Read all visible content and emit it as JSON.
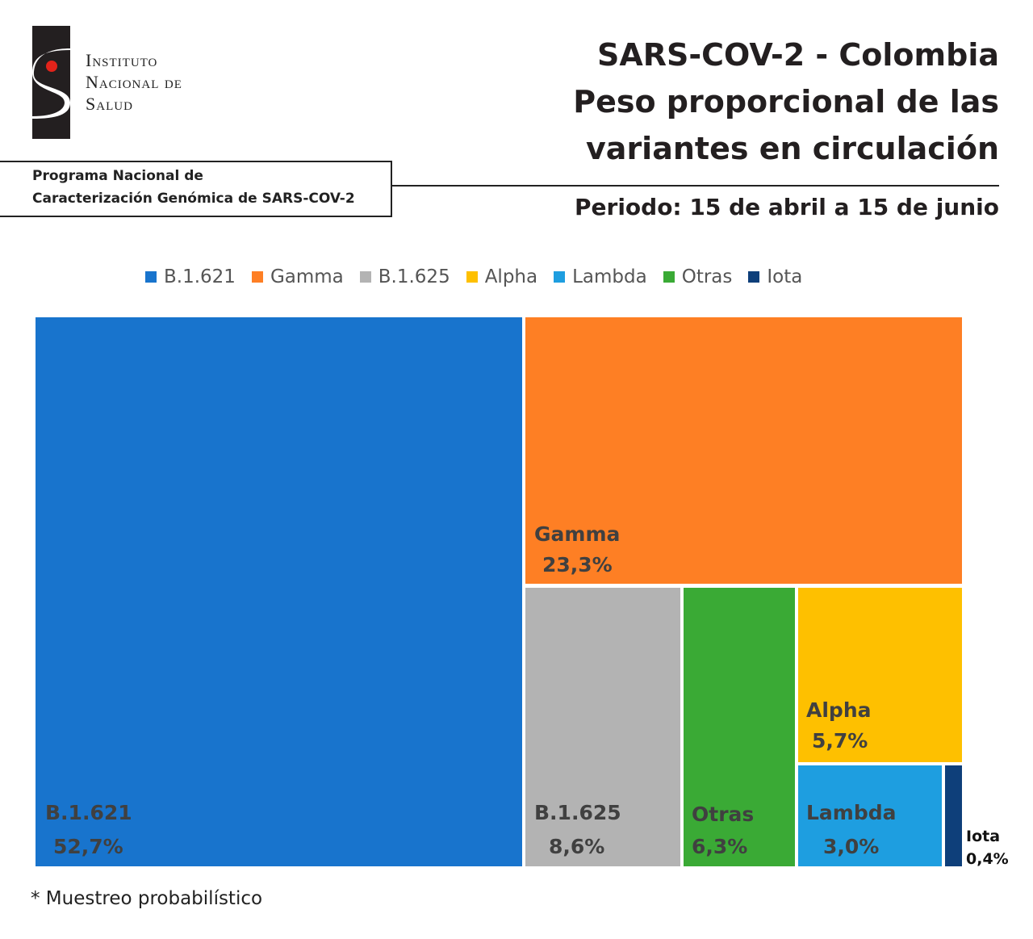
{
  "header": {
    "org_lines": [
      "Instituto",
      "Nacional de",
      "Salud"
    ],
    "program_lines": [
      "Programa Nacional de",
      "Caracterización Genómica de SARS-COV-2"
    ],
    "title_lines": [
      "SARS-COV-2 - Colombia",
      "Peso proporcional de las",
      "variantes en circulación"
    ],
    "period": "Periodo: 15 de abril a 15 de junio"
  },
  "chart_data": {
    "type": "treemap",
    "legend_position": "top",
    "series": [
      {
        "name": "B.1.621",
        "value": 52.7,
        "label": "52,7%",
        "color": "#1874cd"
      },
      {
        "name": "Gamma",
        "value": 23.3,
        "label": "23,3%",
        "color": "#fe7f24"
      },
      {
        "name": "B.1.625",
        "value": 8.6,
        "label": "8,6%",
        "color": "#b3b3b3"
      },
      {
        "name": "Alpha",
        "value": 5.7,
        "label": "5,7%",
        "color": "#fec000"
      },
      {
        "name": "Lambda",
        "value": 3.0,
        "label": "3,0%",
        "color": "#1e9ee0"
      },
      {
        "name": "Otras",
        "value": 6.3,
        "label": "6,3%",
        "color": "#3aaa35"
      },
      {
        "name": "Iota",
        "value": 0.4,
        "label": "0,4%",
        "color": "#0e3f7a"
      }
    ]
  },
  "footnote": "* Muestreo probabilístico"
}
